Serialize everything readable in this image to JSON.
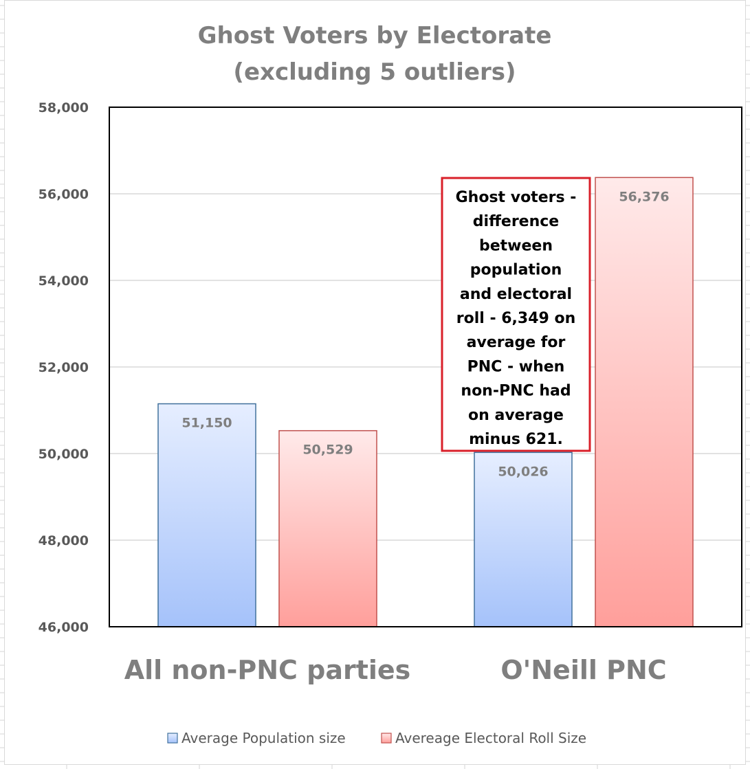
{
  "chart_data": {
    "type": "bar",
    "title": [
      "Ghost Voters by Electorate",
      "(excluding 5 outliers)"
    ],
    "categories": [
      "All non-PNC parties",
      "O'Neill PNC"
    ],
    "series": [
      {
        "name": "Average Population size",
        "values": [
          51150,
          50026
        ],
        "labels": [
          "51,150",
          "50,026"
        ],
        "color": "#a5c2fa",
        "color_light": "#e6eeff",
        "stroke": "#41719c"
      },
      {
        "name": "Avereage Electoral Roll Size",
        "values": [
          50529,
          56376
        ],
        "labels": [
          "50,529",
          "56,376"
        ],
        "color": "#ff9f9b",
        "color_light": "#ffeaea",
        "stroke": "#c0504d"
      }
    ],
    "ylim": [
      46000,
      58000
    ],
    "yticks": [
      46000,
      48000,
      50000,
      52000,
      54000,
      56000,
      58000
    ],
    "ytick_labels": [
      "46,000",
      "48,000",
      "50,000",
      "52,000",
      "54,000",
      "56,000",
      "58,000"
    ],
    "grid": true,
    "legend_position": "bottom",
    "annotation": {
      "lines": [
        "Ghost voters -",
        "difference",
        "between",
        "population",
        "and electoral",
        "roll - 6,349 on",
        "average for",
        "PNC - when",
        "non-PNC had",
        "on average",
        "minus 621."
      ],
      "border_color": "#d9202a"
    }
  }
}
